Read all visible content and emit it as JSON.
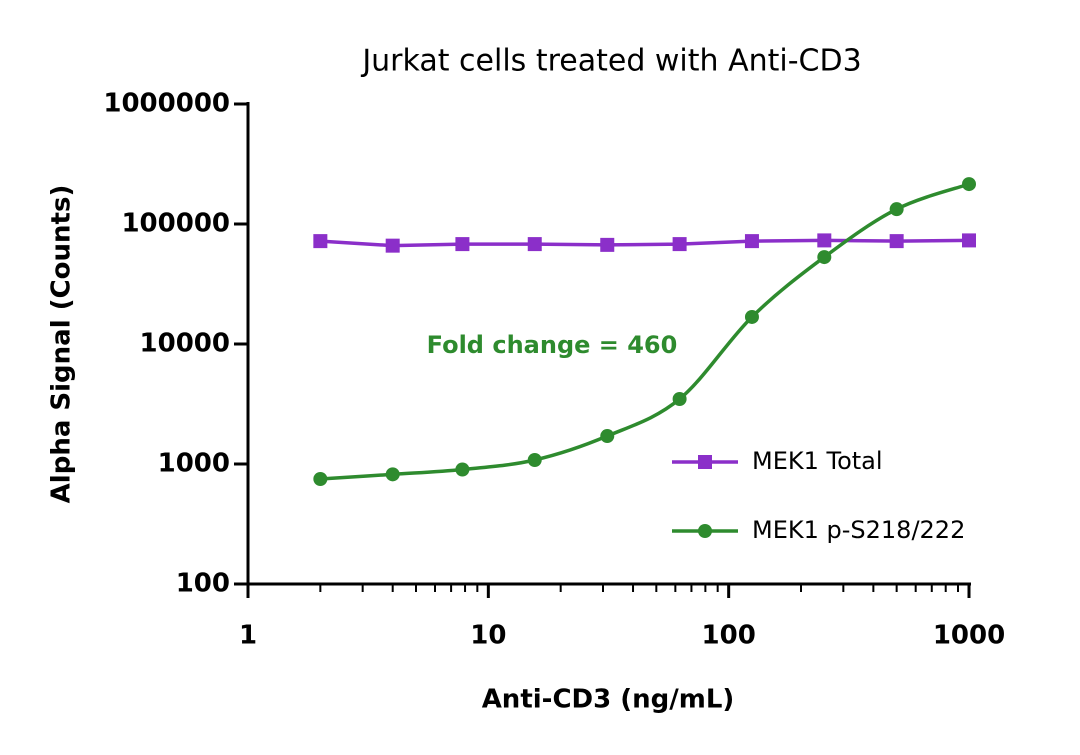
{
  "chart_data": {
    "type": "line",
    "title": "Jurkat cells treated with Anti-CD3",
    "x_label": "Anti-CD3 (ng/mL)",
    "y_label": "Alpha Signal (Counts)",
    "x_log": true,
    "y_log": true,
    "xlim": [
      1,
      1000
    ],
    "xticks": [
      1,
      10,
      100,
      1000
    ],
    "ylim": [
      100,
      1000000
    ],
    "yticks": [
      100,
      1000,
      10000,
      100000,
      1000000
    ],
    "x": [
      2,
      4,
      7.8,
      15.6,
      31.25,
      62.5,
      125,
      250,
      500,
      1000
    ],
    "series": [
      {
        "name": "MEK1 Total",
        "color": "#8b2fc9",
        "marker": "square",
        "curve": "straight",
        "values": [
          72000,
          66000,
          68000,
          68000,
          67000,
          68000,
          72000,
          73000,
          72000,
          73000
        ]
      },
      {
        "name": "MEK1 p-S218/222",
        "color": "#2e8b2e",
        "marker": "circle",
        "curve": "smooth",
        "values": [
          750,
          820,
          900,
          1080,
          1710,
          3480,
          16800,
          53000,
          133000,
          215000
        ]
      }
    ],
    "annotation": {
      "text": "Fold change = 460",
      "color": "#2e8b2e"
    }
  }
}
